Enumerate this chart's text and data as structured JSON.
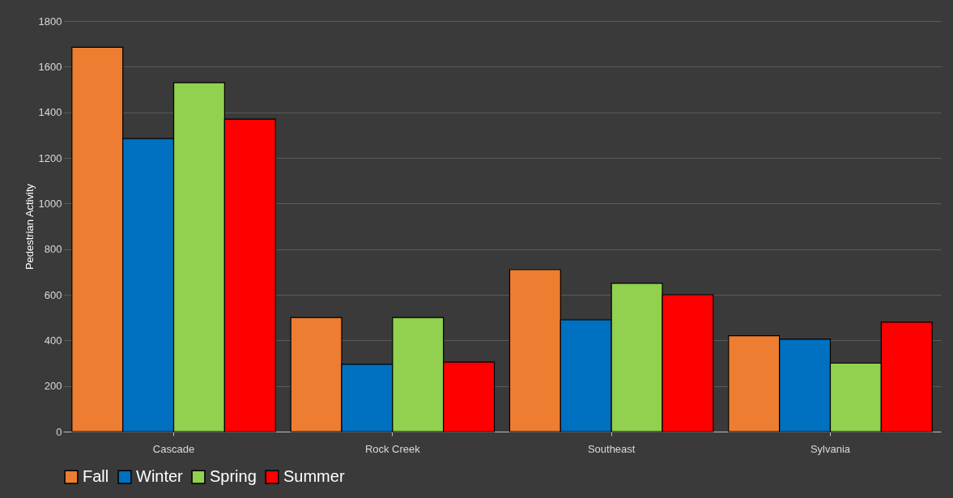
{
  "chart_data": {
    "type": "bar",
    "ylabel": "Pedestrian Activity",
    "categories": [
      "Cascade",
      "Rock Creek",
      "Southeast",
      "Sylvania"
    ],
    "series": [
      {
        "name": "Fall",
        "color": "#ed7d31",
        "values": [
          1685,
          500,
          710,
          420
        ]
      },
      {
        "name": "Winter",
        "color": "#0070c0",
        "values": [
          1285,
          295,
          490,
          405
        ]
      },
      {
        "name": "Spring",
        "color": "#92d050",
        "values": [
          1530,
          500,
          650,
          300
        ]
      },
      {
        "name": "Summer",
        "color": "#ff0000",
        "values": [
          1370,
          305,
          600,
          480
        ]
      }
    ],
    "ylim": [
      0,
      1800
    ],
    "yticks": [
      0,
      200,
      400,
      600,
      800,
      1000,
      1200,
      1400,
      1600,
      1800
    ],
    "grid": "y",
    "legend": "bottom"
  }
}
